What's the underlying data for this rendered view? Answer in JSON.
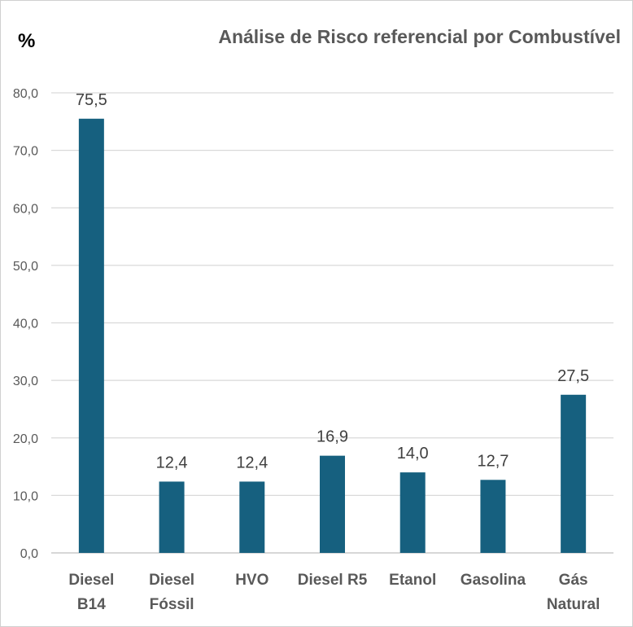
{
  "chart_data": {
    "type": "bar",
    "title": "Análise de Risco referencial por Combustível",
    "ylabel": "%",
    "xlabel": "",
    "ylim": [
      0,
      80
    ],
    "yticks": [
      "0,0",
      "10,0",
      "20,0",
      "30,0",
      "40,0",
      "50,0",
      "60,0",
      "70,0",
      "80,0"
    ],
    "categories": [
      [
        "Diesel",
        "B14"
      ],
      [
        "Diesel",
        "Fóssil"
      ],
      [
        "HVO"
      ],
      [
        "Diesel R5"
      ],
      [
        "Etanol"
      ],
      [
        "Gasolina"
      ],
      [
        "Gás",
        "Natural"
      ]
    ],
    "values": [
      75.5,
      12.4,
      12.4,
      16.9,
      14.0,
      12.7,
      27.5
    ],
    "data_labels": [
      "75,5",
      "12,4",
      "12,4",
      "16,9",
      "14,0",
      "12,7",
      "27,5"
    ],
    "bar_color": "#16607F",
    "grid": true,
    "legend": "none"
  }
}
